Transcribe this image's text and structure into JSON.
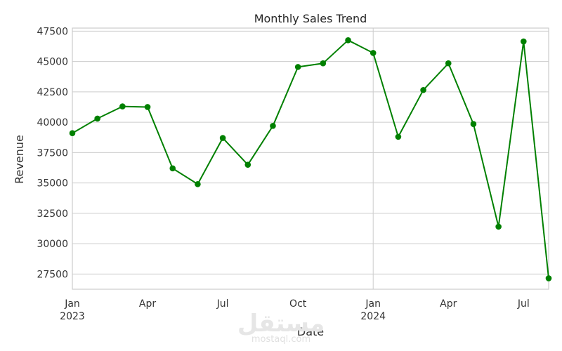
{
  "chart_data": {
    "type": "line",
    "title": "Monthly Sales Trend",
    "xlabel": "Date",
    "ylabel": "Revenue",
    "ylim": [
      26250,
      47750
    ],
    "xlim": [
      "2023-01",
      "2024-08"
    ],
    "grid": true,
    "x_tick_labels": [
      {
        "date": "2023-01",
        "label": "Jan",
        "sublabel": "2023"
      },
      {
        "date": "2023-04",
        "label": "Apr",
        "sublabel": ""
      },
      {
        "date": "2023-07",
        "label": "Jul",
        "sublabel": ""
      },
      {
        "date": "2023-10",
        "label": "Oct",
        "sublabel": ""
      },
      {
        "date": "2024-01",
        "label": "Jan",
        "sublabel": "2024"
      },
      {
        "date": "2024-04",
        "label": "Apr",
        "sublabel": ""
      },
      {
        "date": "2024-07",
        "label": "Jul",
        "sublabel": ""
      }
    ],
    "y_ticks": [
      27500,
      30000,
      32500,
      35000,
      37500,
      40000,
      42500,
      45000,
      47500
    ],
    "series": [
      {
        "color": "#008000",
        "x": [
          "2023-01",
          "2023-02",
          "2023-03",
          "2023-04",
          "2023-05",
          "2023-06",
          "2023-07",
          "2023-08",
          "2023-09",
          "2023-10",
          "2023-11",
          "2023-12",
          "2024-01",
          "2024-02",
          "2024-03",
          "2024-04",
          "2024-05",
          "2024-06",
          "2024-07",
          "2024-08"
        ],
        "values": [
          39100,
          40300,
          41300,
          41250,
          36200,
          34900,
          38700,
          36500,
          39700,
          44550,
          44850,
          46750,
          45700,
          38800,
          42650,
          44850,
          39850,
          31400,
          46650,
          27150
        ]
      }
    ]
  },
  "watermark": {
    "logo_text": "مستقل",
    "url_text": "mostaql.com"
  }
}
